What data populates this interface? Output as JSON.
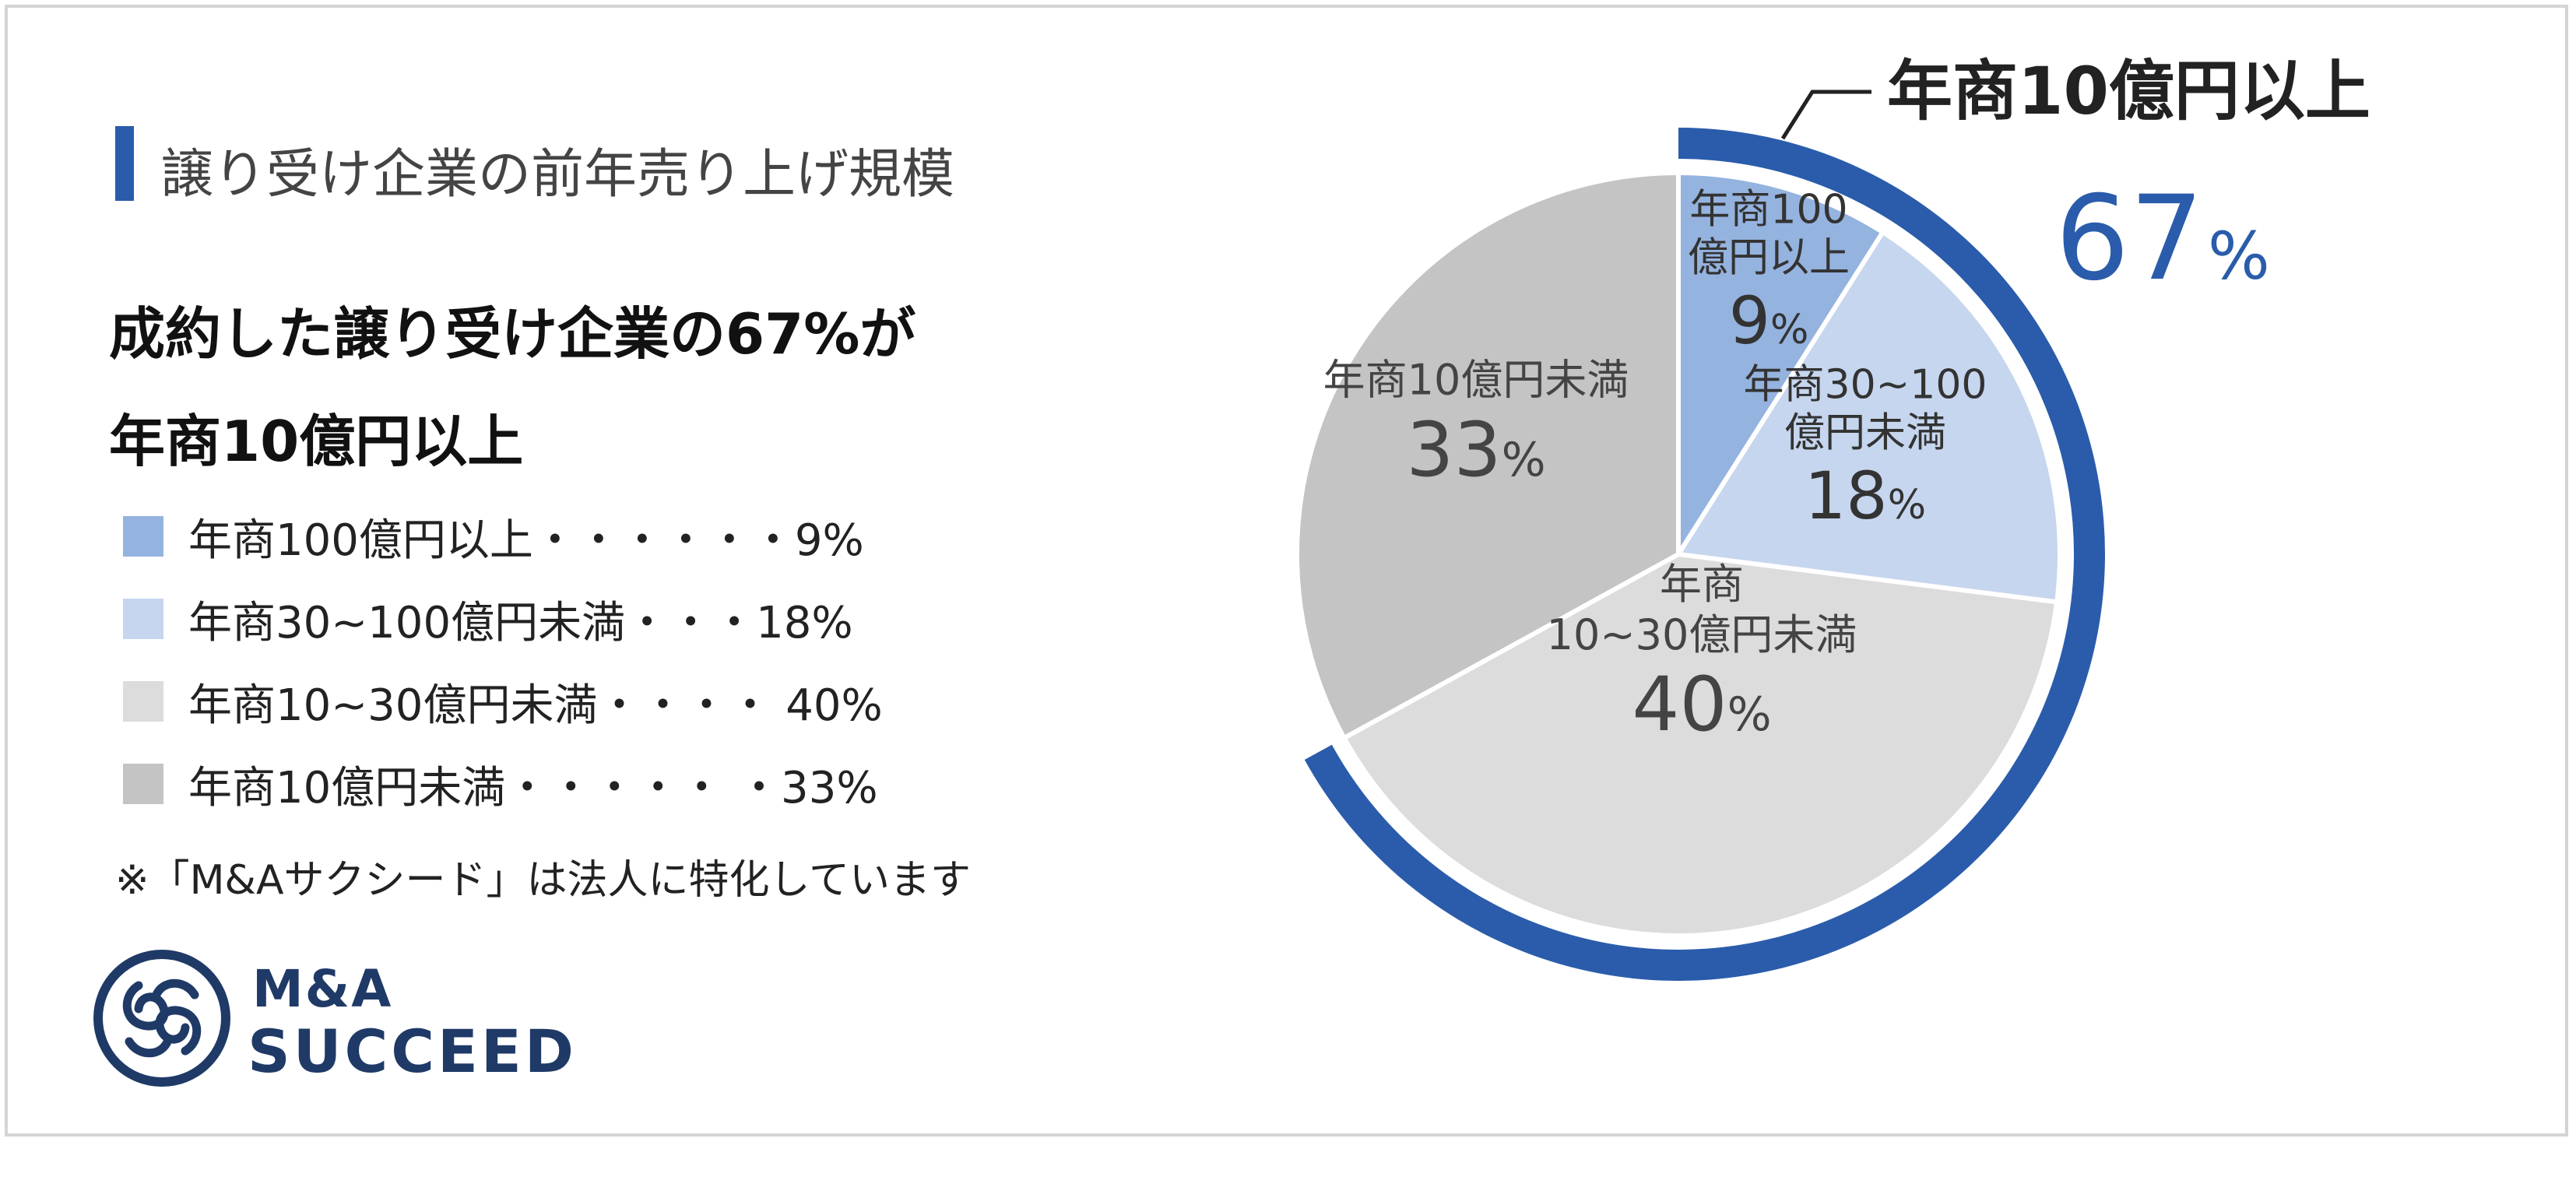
{
  "header": {
    "title": "譲り受け企業の前年売り上げ規模"
  },
  "headline": {
    "line1": "成約した譲り受け企業の67%が",
    "line2": "年商10億円以上"
  },
  "legend": [
    {
      "label": "年商100億円以上・・・・・・9%",
      "color": "#95b3df"
    },
    {
      "label": "年商30~100億円未満・・・18%",
      "color": "#c6d6ee"
    },
    {
      "label": "年商10~30億円未満・・・・ 40%",
      "color": "#dcdcdc"
    },
    {
      "label": "年商10億円未満・・・・・ ・33%",
      "color": "#c4c4c4"
    }
  ],
  "note": "※「M&Aサクシード」は法人に特化しています",
  "logo": {
    "top": "M&A",
    "bottom": "SUCCEED"
  },
  "colors": {
    "accent": "#2b5cab",
    "ring": "#2b5cab",
    "callout_value": "#2b5cab"
  },
  "chart_data": {
    "type": "pie",
    "categories": [
      "年商100億円以上",
      "年商30~100億円未満",
      "年商10~30億円未満",
      "年商10億円未満"
    ],
    "values": [
      9,
      18,
      40,
      33
    ],
    "unit": "%",
    "slice_labels": [
      {
        "lines": [
          "年商100",
          "億円以上"
        ],
        "value": "9",
        "unit": "%",
        "color": "#333"
      },
      {
        "lines": [
          "年商30~100",
          "億円未満"
        ],
        "value": "18",
        "unit": "%",
        "color": "#333"
      },
      {
        "lines": [
          "年商",
          "10~30億円未満"
        ],
        "value": "40",
        "unit": "%",
        "color": "#444"
      },
      {
        "lines": [
          "年商10億円未満"
        ],
        "value": "33",
        "unit": "%",
        "color": "#444"
      }
    ],
    "slice_colors": [
      "#95b3df",
      "#c6d6ee",
      "#dcdcdc",
      "#c4c4c4"
    ],
    "highlight": {
      "label": "年商10億円以上",
      "value": "67",
      "unit": "%",
      "covers_categories": [
        "年商100億円以上",
        "年商30~100億円未満",
        "年商10~30億円未満"
      ]
    }
  }
}
